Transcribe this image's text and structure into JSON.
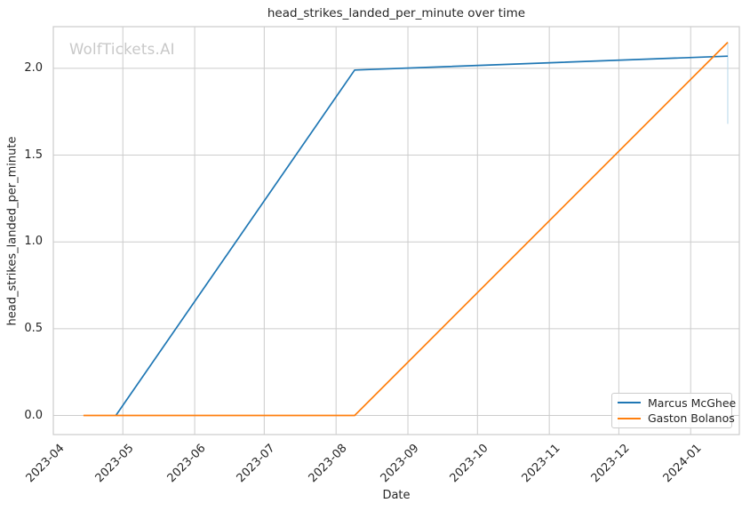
{
  "page": {
    "watermark": "WolfTickets.AI"
  },
  "chart_data": {
    "type": "line",
    "title": "head_strikes_landed_per_minute over time",
    "xlabel": "Date",
    "ylabel": "head_strikes_landed_per_minute",
    "x_tick_labels": [
      "2023-04",
      "2023-05",
      "2023-06",
      "2023-07",
      "2023-08",
      "2023-09",
      "2023-10",
      "2023-11",
      "2023-12",
      "2024-01"
    ],
    "y_ticks": [
      0.0,
      0.5,
      1.0,
      1.5,
      2.0
    ],
    "xlim": [
      "2023-04-01",
      "2024-01-22"
    ],
    "ylim": [
      -0.11,
      2.24
    ],
    "grid": true,
    "legend_position": "lower right",
    "series": [
      {
        "name": "Marcus McGhee",
        "color": "#1f77b4",
        "points": [
          [
            "2023-04-28",
            0.0
          ],
          [
            "2023-08-09",
            1.99
          ],
          [
            "2024-01-17",
            2.07
          ]
        ]
      },
      {
        "name": "Gaston Bolanos",
        "color": "#ff7f0e",
        "points": [
          [
            "2023-04-14",
            0.0
          ],
          [
            "2023-08-09",
            0.0
          ],
          [
            "2024-01-17",
            2.15
          ]
        ]
      }
    ],
    "annotations": [
      {
        "type": "vline",
        "date": "2024-01-17",
        "y_from": 2.15,
        "y_to": 1.68,
        "color": "#bcd9ec"
      }
    ]
  },
  "colors": {
    "grid": "#cccccc",
    "spine": "#cccccc",
    "text": "#262626",
    "watermark": "#c8c8c8",
    "background": "#ffffff"
  }
}
